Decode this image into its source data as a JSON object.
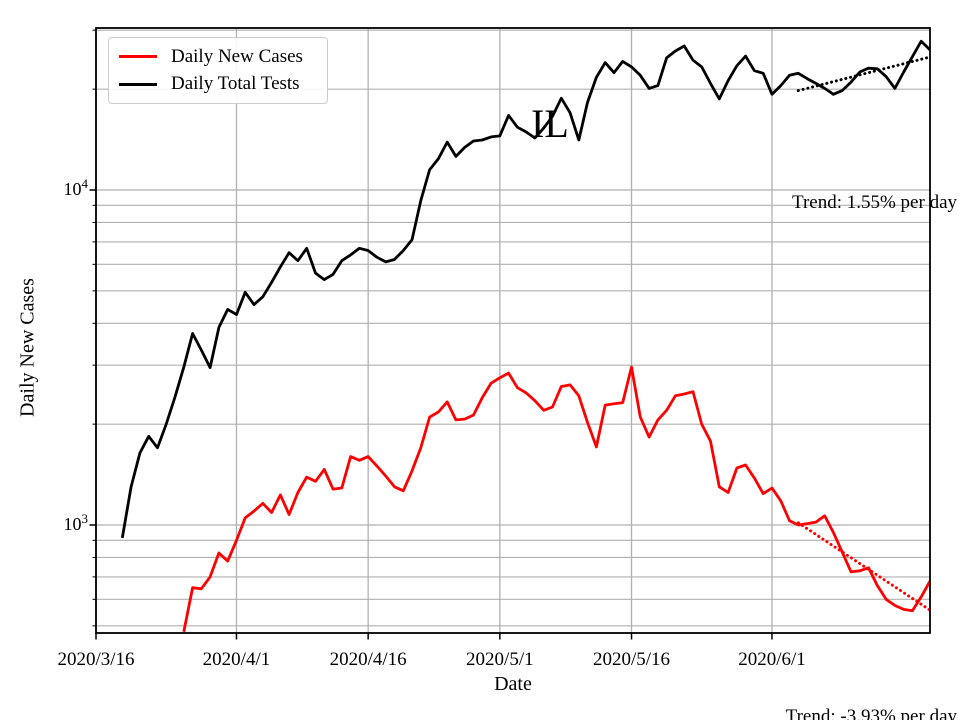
{
  "page": {
    "background": "#ffffff"
  },
  "legend": {
    "items": [
      {
        "label": "Daily New Cases",
        "color": "#ff0000"
      },
      {
        "label": "Daily Total Tests",
        "color": "#000000"
      }
    ]
  },
  "axes": {
    "x_label": "Date",
    "y_label": "Daily New Cases",
    "y_ticks": [
      {
        "base": "10",
        "exp": "4"
      },
      {
        "base": "10",
        "exp": "3"
      }
    ]
  },
  "annotations": {
    "state": "IL",
    "trend_tests": "Trend: 1.55% per day",
    "trend_cases": "Trend: -3.93% per day"
  },
  "colors": {
    "cases": "#ff0000",
    "tests": "#000000",
    "grid": "#b0b0b0",
    "axis": "#000000",
    "legend_border": "#cccccc"
  },
  "chart_data": {
    "type": "line",
    "title": "",
    "xlabel": "Date",
    "ylabel": "Daily New Cases",
    "y_scale": "log",
    "ylim": [
      476,
      30460
    ],
    "x_start": "2020/3/16",
    "x_end": "2020/6/19",
    "x_ticks": [
      "2020/3/16",
      "2020/4/1",
      "2020/4/16",
      "2020/5/1",
      "2020/5/16",
      "2020/6/1"
    ],
    "grid": true,
    "legend_position": "upper left",
    "series": [
      {
        "name": "Daily New Cases",
        "color": "#ff0000",
        "line_style": "solid",
        "start_date": "2020/3/26",
        "frequency": "daily",
        "values": [
          480,
          650,
          645,
          700,
          825,
          780,
          900,
          1050,
          1100,
          1160,
          1090,
          1230,
          1075,
          1250,
          1390,
          1350,
          1465,
          1280,
          1290,
          1600,
          1560,
          1600,
          1500,
          1400,
          1300,
          1265,
          1450,
          1700,
          2100,
          2175,
          2330,
          2060,
          2070,
          2130,
          2400,
          2650,
          2750,
          2840,
          2570,
          2480,
          2350,
          2200,
          2250,
          2590,
          2620,
          2430,
          2020,
          1710,
          2280,
          2300,
          2320,
          2960,
          2100,
          1830,
          2060,
          2200,
          2430,
          2460,
          2500,
          2000,
          1780,
          1300,
          1250,
          1480,
          1510,
          1380,
          1240,
          1290,
          1180,
          1030,
          1000,
          1010,
          1020,
          1065,
          950,
          830,
          725,
          730,
          745,
          660,
          600,
          575,
          560,
          555,
          610,
          680
        ]
      },
      {
        "name": "Daily Total Tests",
        "color": "#000000",
        "line_style": "solid",
        "start_date": "2020/3/19",
        "frequency": "daily",
        "values": [
          915,
          1300,
          1640,
          1840,
          1700,
          2000,
          2410,
          2960,
          3730,
          3330,
          2950,
          3890,
          4400,
          4250,
          4950,
          4550,
          4800,
          5300,
          5900,
          6500,
          6150,
          6700,
          5650,
          5400,
          5600,
          6150,
          6400,
          6700,
          6600,
          6300,
          6100,
          6200,
          6600,
          7100,
          9300,
          11500,
          12400,
          13900,
          12600,
          13400,
          14000,
          14100,
          14400,
          14500,
          16700,
          15400,
          14900,
          14300,
          15300,
          16600,
          18800,
          17000,
          14100,
          18300,
          21700,
          24000,
          22400,
          24200,
          23300,
          22000,
          20100,
          20500,
          24800,
          26000,
          26900,
          24400,
          23300,
          20800,
          18700,
          21200,
          23500,
          25100,
          22700,
          22300,
          19300,
          20500,
          22000,
          22300,
          21500,
          20800,
          20100,
          19300,
          19800,
          21000,
          22500,
          23100,
          23000,
          21800,
          20100,
          22500,
          25000,
          27800,
          26200
        ]
      },
      {
        "name": "Daily Total Tests trend (+1.55% per day)",
        "color": "#000000",
        "line_style": "dotted",
        "dates": [
          "2020/6/4",
          "2020/6/19"
        ],
        "values": [
          19800,
          24950
        ]
      },
      {
        "name": "Daily New Cases trend (-3.93% per day)",
        "color": "#ff0000",
        "line_style": "dotted",
        "dates": [
          "2020/6/4",
          "2020/6/19"
        ],
        "values": [
          1015,
          557
        ]
      }
    ]
  }
}
